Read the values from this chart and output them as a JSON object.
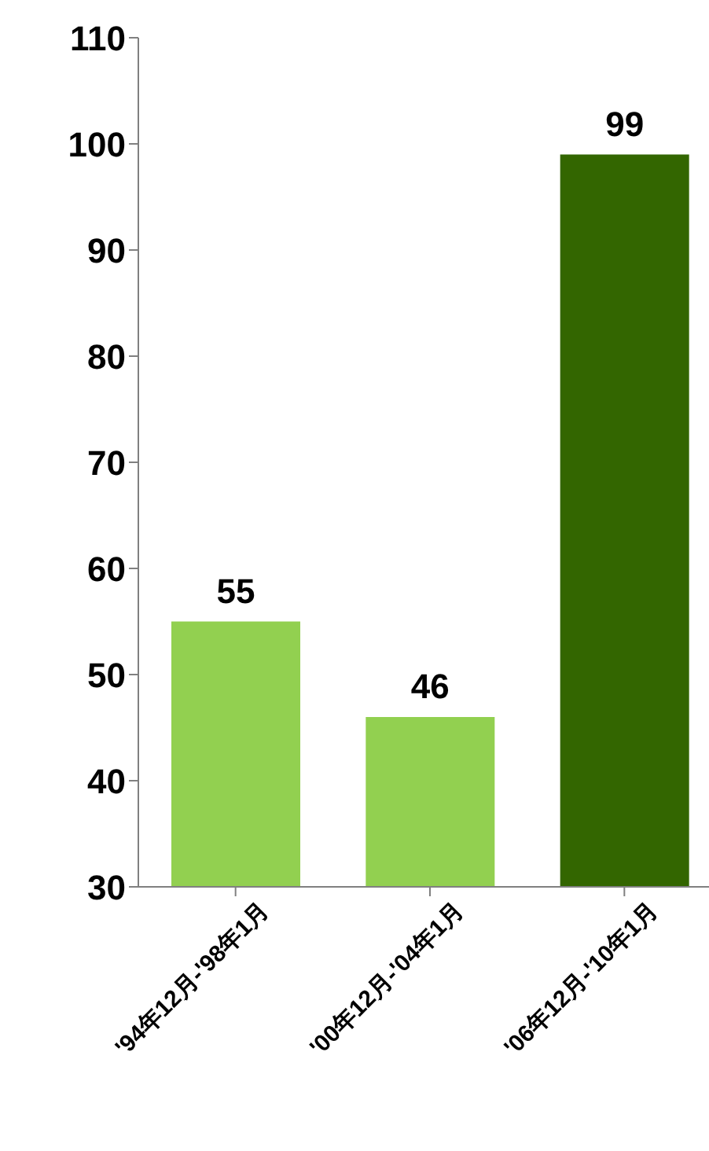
{
  "chart_data": {
    "type": "bar",
    "categories": [
      "'94年12月-'98年1月",
      "'00年12月-'04年1月",
      "'06年12月-'10年1月"
    ],
    "values": [
      55,
      46,
      99
    ],
    "colors": [
      "#92d050",
      "#92d050",
      "#336600"
    ],
    "ylim": [
      30,
      110
    ],
    "yticks": [
      30,
      40,
      50,
      60,
      70,
      80,
      90,
      100,
      110
    ],
    "data_labels": true,
    "grid": false,
    "legend": false
  }
}
